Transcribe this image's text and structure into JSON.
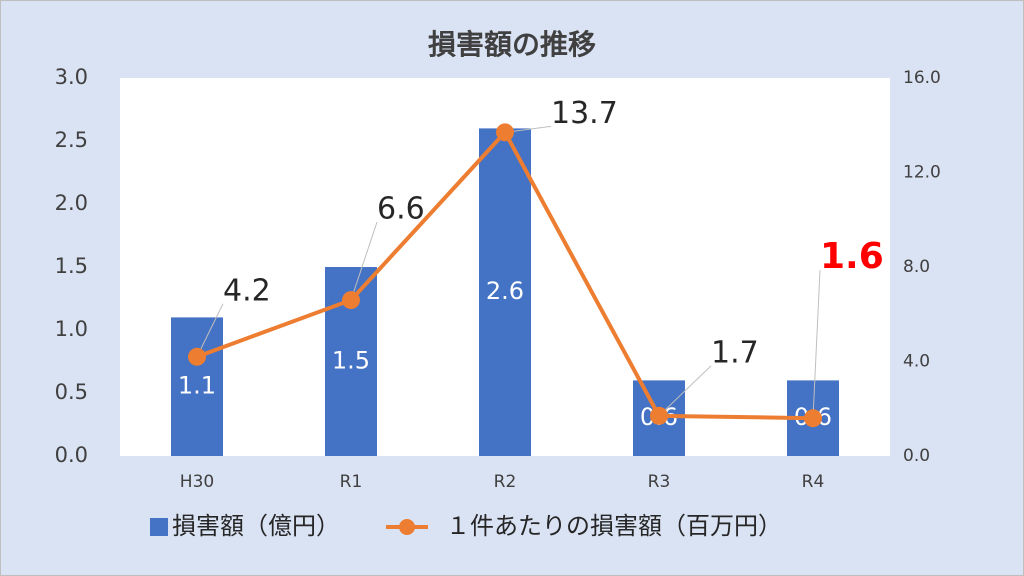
{
  "chart_data": {
    "type": "bar_line",
    "title": "損害額の推移",
    "categories": [
      "H30",
      "R1",
      "R2",
      "R3",
      "R4"
    ],
    "series": [
      {
        "name": "損害額（億円）",
        "type": "bar",
        "color": "#4472c4",
        "values": [
          1.1,
          1.5,
          2.6,
          0.6,
          0.6
        ]
      },
      {
        "name": "１件あたりの損害額（百万円）",
        "type": "line",
        "axis": "y2",
        "color": "#ed7d31",
        "values": [
          4.2,
          6.6,
          13.7,
          1.7,
          1.6
        ],
        "label_colors": [
          "#262626",
          "#262626",
          "#262626",
          "#262626",
          "#ff0000"
        ]
      }
    ],
    "ylim": [
      0,
      3
    ],
    "yticks": [
      {
        "value": 0,
        "label": "0.0"
      },
      0.5,
      {
        "value": 1,
        "label": "1.0"
      },
      1.5,
      {
        "value": 2,
        "label": "2.0"
      },
      2.5,
      {
        "value": 3,
        "label": "3.0"
      }
    ],
    "y2lim": [
      0,
      16
    ],
    "y2ticks": [
      {
        "value": 0,
        "label": "0.0"
      },
      {
        "value": 4,
        "label": "4.0"
      },
      {
        "value": 8,
        "label": "8.0"
      },
      {
        "value": 12,
        "label": "12.0"
      },
      {
        "value": 16,
        "label": "16.0"
      }
    ],
    "legend": "bottom"
  }
}
